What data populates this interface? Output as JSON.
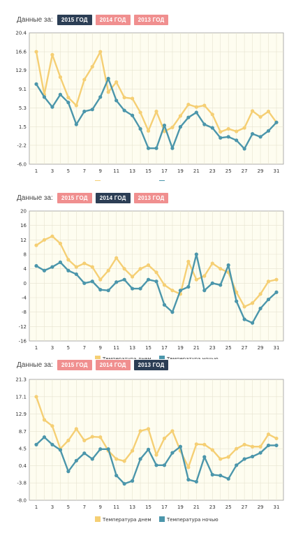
{
  "header_label": "Данные за:",
  "years": [
    "2015 ГОД",
    "2014 ГОД",
    "2013 ГОД"
  ],
  "colors": {
    "day": "#f5cf74",
    "night": "#4b96ab",
    "active_button": "#2c3e55",
    "inactive_button": "#f08f8f",
    "plot_bg": "#fefdf0"
  },
  "legend": {
    "day": "Температура днем",
    "night": "Температура ночью"
  },
  "chart_data": [
    {
      "type": "line",
      "selected_year": "2015 ГОД",
      "x": [
        1,
        2,
        3,
        4,
        5,
        6,
        7,
        8,
        9,
        10,
        11,
        12,
        13,
        14,
        15,
        16,
        17,
        18,
        19,
        20,
        21,
        22,
        23,
        24,
        25,
        26,
        27,
        28,
        29,
        30,
        31
      ],
      "x_ticks": [
        "1",
        "3",
        "5",
        "7",
        "9",
        "11",
        "13",
        "15",
        "17",
        "19",
        "21",
        "23",
        "25",
        "27",
        "29",
        "31"
      ],
      "y_ticks": [
        "20.4",
        "16.6",
        "12.9",
        "9.1",
        "5.3",
        "1.5",
        "-2.2",
        "-6.0"
      ],
      "ylim": [
        -6.0,
        20.4
      ],
      "series": [
        {
          "name": "Температура днем",
          "values": [
            16.6,
            8.0,
            16.0,
            11.5,
            7.4,
            5.8,
            11.0,
            13.6,
            16.6,
            8.5,
            10.5,
            7.4,
            7.2,
            4.4,
            0.7,
            4.6,
            0.6,
            1.4,
            3.7,
            6.0,
            5.5,
            5.8,
            4.0,
            0.5,
            1.1,
            0.6,
            1.3,
            4.7,
            3.5,
            4.6,
            2.4
          ]
        },
        {
          "name": "Температура ночью",
          "values": [
            10.1,
            7.5,
            5.5,
            8.0,
            6.4,
            2.0,
            4.6,
            5.0,
            7.5,
            11.2,
            6.8,
            4.8,
            3.8,
            1.1,
            -2.8,
            -2.8,
            1.8,
            -2.8,
            1.5,
            3.4,
            4.4,
            2.0,
            1.3,
            -0.7,
            -0.5,
            -1.2,
            -2.9,
            0.1,
            -0.5,
            0.7,
            2.4
          ]
        }
      ]
    },
    {
      "type": "line",
      "selected_year": "2014 ГОД",
      "x": [
        1,
        2,
        3,
        4,
        5,
        6,
        7,
        8,
        9,
        10,
        11,
        12,
        13,
        14,
        15,
        16,
        17,
        18,
        19,
        20,
        21,
        22,
        23,
        24,
        25,
        26,
        27,
        28,
        29,
        30,
        31
      ],
      "x_ticks": [
        "1",
        "3",
        "5",
        "7",
        "9",
        "11",
        "13",
        "15",
        "17",
        "19",
        "21",
        "23",
        "25",
        "27",
        "29",
        "31"
      ],
      "y_ticks": [
        "20",
        "16",
        "12",
        "8",
        "4",
        "0",
        "-4",
        "-8",
        "-12",
        "-16"
      ],
      "ylim": [
        -16,
        20
      ],
      "series": [
        {
          "name": "Температура днем",
          "values": [
            10.5,
            12.0,
            13.0,
            11.0,
            6.5,
            4.5,
            5.5,
            4.5,
            1.0,
            3.5,
            7.0,
            4.0,
            1.8,
            4.0,
            5.0,
            3.0,
            -0.5,
            -2.0,
            -3.0,
            6.0,
            1.0,
            2.0,
            5.5,
            4.0,
            3.0,
            -2.5,
            -6.5,
            -5.5,
            -3.0,
            0.5,
            1.0
          ]
        },
        {
          "name": "Температура ночью",
          "values": [
            4.8,
            3.5,
            4.5,
            5.8,
            3.5,
            2.5,
            0.0,
            0.5,
            -1.8,
            -2.0,
            0.3,
            1.0,
            -1.5,
            -1.5,
            1.0,
            0.5,
            -6.0,
            -8.0,
            -2.0,
            -1.0,
            8.0,
            -2.0,
            0.0,
            -0.5,
            5.0,
            -5.0,
            -10.0,
            -11.0,
            -7.0,
            -4.5,
            -2.5
          ]
        }
      ]
    },
    {
      "type": "line",
      "selected_year": "2013 ГОД",
      "x": [
        1,
        2,
        3,
        4,
        5,
        6,
        7,
        8,
        9,
        10,
        11,
        12,
        13,
        14,
        15,
        16,
        17,
        18,
        19,
        20,
        21,
        22,
        23,
        24,
        25,
        26,
        27,
        28,
        29,
        30,
        31
      ],
      "x_ticks": [
        "1",
        "3",
        "5",
        "7",
        "9",
        "11",
        "13",
        "15",
        "17",
        "19",
        "21",
        "23",
        "25",
        "27",
        "29",
        "31"
      ],
      "y_ticks": [
        "21.3",
        "17.1",
        "12.9",
        "8.7",
        "4.5",
        "0.4",
        "-3.8",
        "-8.0"
      ],
      "ylim": [
        -8.0,
        21.3
      ],
      "series": [
        {
          "name": "Температура днем",
          "values": [
            17.1,
            11.5,
            10.0,
            4.5,
            6.5,
            9.3,
            6.5,
            7.4,
            7.3,
            4.0,
            2.0,
            1.5,
            4.0,
            8.8,
            9.3,
            3.0,
            7.0,
            8.8,
            4.0,
            0.0,
            5.6,
            5.5,
            4.2,
            2.0,
            2.5,
            4.5,
            5.5,
            5.0,
            5.0,
            8.0,
            7.0
          ]
        },
        {
          "name": "Температура ночью",
          "values": [
            5.5,
            7.3,
            5.5,
            4.2,
            -1.0,
            1.6,
            3.4,
            2.0,
            4.4,
            4.4,
            -2.0,
            -4.0,
            -3.3,
            2.0,
            4.3,
            0.5,
            0.5,
            3.5,
            5.0,
            -3.0,
            -3.5,
            2.5,
            -1.8,
            -2.0,
            -2.8,
            0.5,
            2.0,
            2.6,
            3.5,
            5.3,
            5.3
          ]
        }
      ]
    }
  ]
}
